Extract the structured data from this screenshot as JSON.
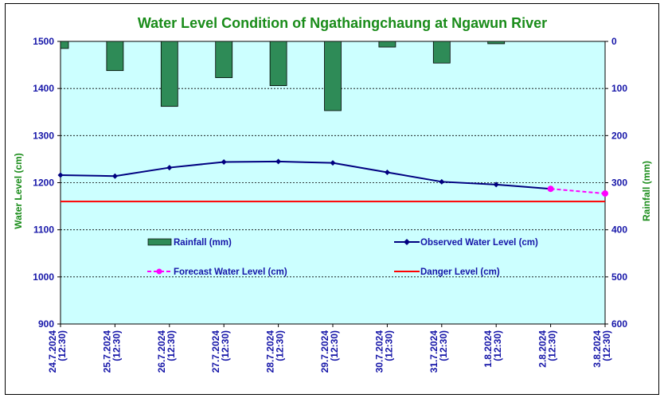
{
  "chart_data": {
    "type": "bar+line",
    "title": "Water Level Condition of  Ngathaingchaung at Ngawun River",
    "ylabel_left": "Water Level (cm)",
    "ylabel_right": "Rainfall (mm)",
    "ylim_left": [
      900,
      1500
    ],
    "ylim_right": [
      600,
      0
    ],
    "yticks_left": [
      "900",
      "1000",
      "1100",
      "1200",
      "1300",
      "1400",
      "1500"
    ],
    "yticks_right": [
      "600",
      "500",
      "400",
      "300",
      "200",
      "100",
      "0"
    ],
    "categories": [
      "24.7.2024 (12:30)",
      "25.7.2024 (12:30)",
      "26.7.2024 (12:30)",
      "27.7.2024 (12:30)",
      "28.7.2024 (12:30)",
      "29.7.2024 (12:30)",
      "30.7.2024 (12:30)",
      "31.7.2024 (12:30)",
      "1.8.2024 (12:30)",
      "2.8.2024 (12:30)",
      "3.8.2024 (12:30)"
    ],
    "series": [
      {
        "name": "Rainfall (mm)",
        "type": "bar",
        "axis": "right",
        "values": [
          15,
          62,
          138,
          77,
          94,
          147,
          12,
          46,
          5,
          null,
          null
        ]
      },
      {
        "name": "Observed Water Level (cm)",
        "type": "line",
        "axis": "left",
        "values": [
          1216,
          1214,
          1232,
          1244,
          1245,
          1242,
          1222,
          1202,
          1196,
          1187,
          null
        ]
      },
      {
        "name": "Forecast Water Level (cm)",
        "type": "line-dashed",
        "axis": "left",
        "values": [
          null,
          null,
          null,
          null,
          null,
          null,
          null,
          null,
          null,
          1187,
          1177
        ]
      },
      {
        "name": "Danger Level (cm)",
        "type": "hline",
        "axis": "left",
        "value": 1160
      }
    ],
    "legend": [
      "Rainfall (mm)",
      "Observed Water Level (cm)",
      "Forecast Water Level (cm)",
      "Danger Level (cm)"
    ],
    "grid": true,
    "colors": {
      "plot_bg": "#ccffff",
      "rainfall": "#2e8b57",
      "observed": "#000080",
      "forecast": "#ff00ff",
      "danger": "#ff0000",
      "title": "#1a8c1a",
      "ticks_left": "#1515a8",
      "ticks_right": "#1515a8",
      "axis_labels": "#1a8c1a"
    }
  }
}
